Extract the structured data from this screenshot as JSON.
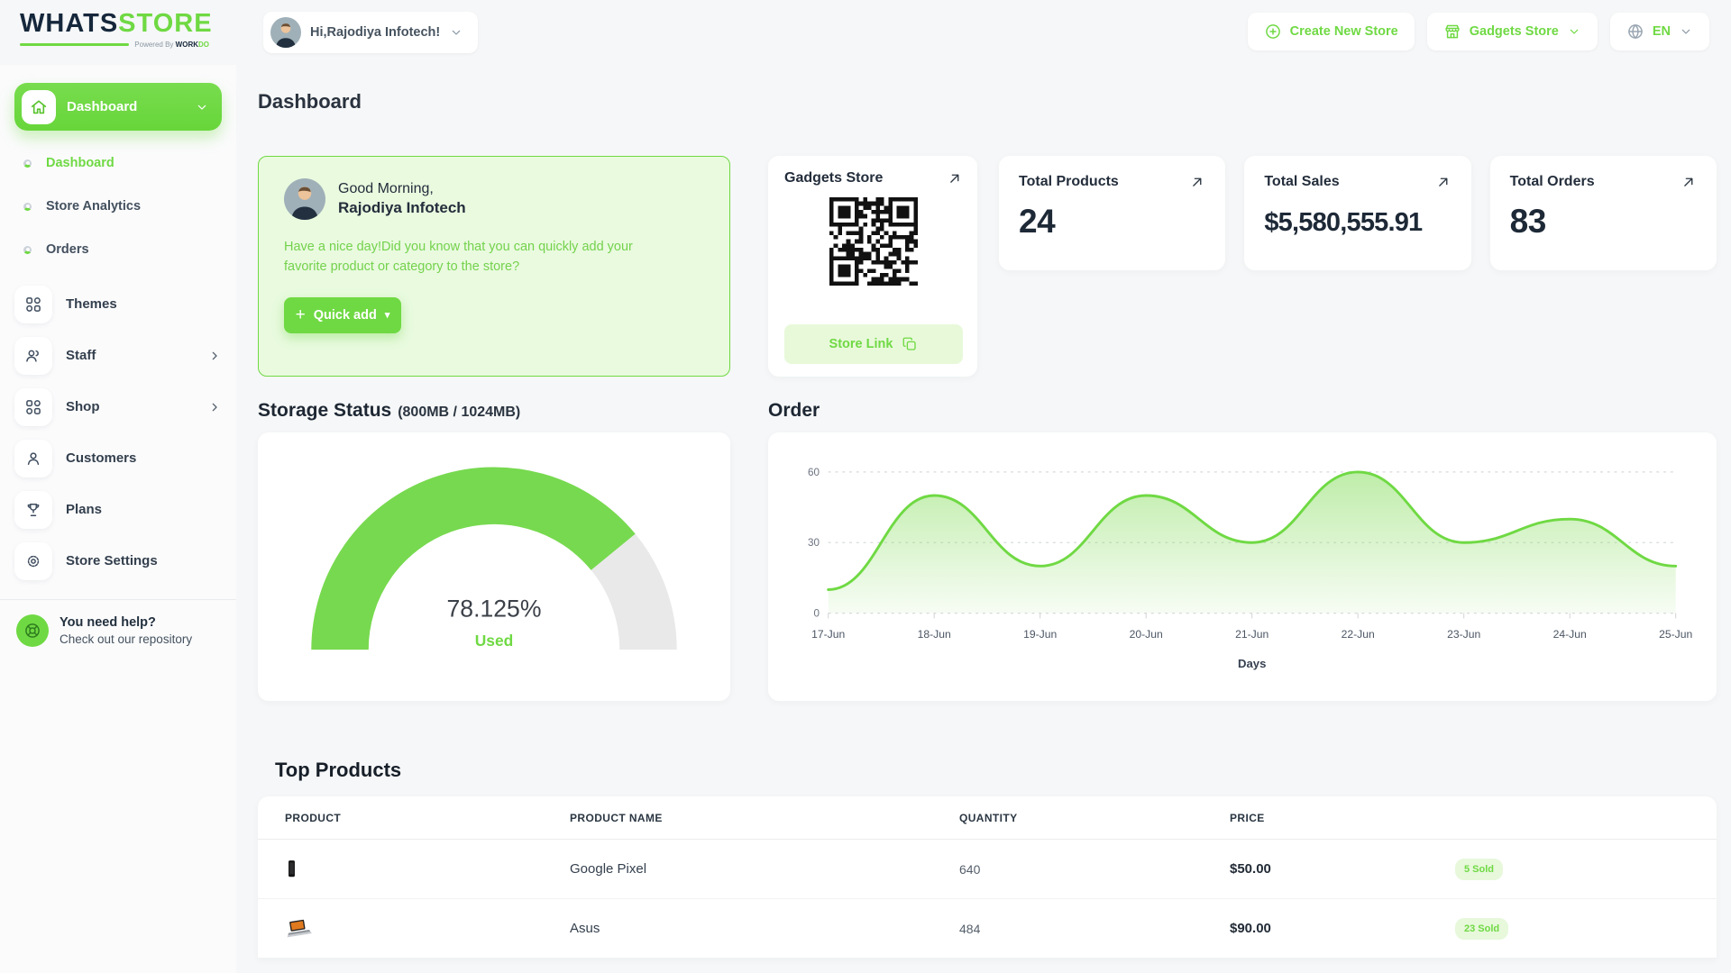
{
  "brand": {
    "primary": "WHATS",
    "secondary": "STORE",
    "powered_prefix": "Powered By",
    "powered_name": "WORKDO"
  },
  "header": {
    "user_pill_label": "Hi,Rajodiya Infotech!",
    "create_new_store": "Create New Store",
    "store_selector": "Gadgets Store",
    "language": "EN"
  },
  "sidebar": {
    "group_active_label": "Dashboard",
    "sub_items": [
      {
        "label": "Dashboard",
        "active": true
      },
      {
        "label": "Store Analytics",
        "active": false
      },
      {
        "label": "Orders",
        "active": false
      }
    ],
    "items": [
      {
        "label": "Themes",
        "icon": "themes-grid-icon",
        "has_chevron": false
      },
      {
        "label": "Staff",
        "icon": "staff-users-icon",
        "has_chevron": true
      },
      {
        "label": "Shop",
        "icon": "shop-grid-icon",
        "has_chevron": true
      },
      {
        "label": "Customers",
        "icon": "customer-user-icon",
        "has_chevron": false
      },
      {
        "label": "Plans",
        "icon": "plans-trophy-icon",
        "has_chevron": false
      },
      {
        "label": "Store Settings",
        "icon": "settings-gear-icon",
        "has_chevron": false
      }
    ],
    "help": {
      "title": "You need help?",
      "subtitle": "Check out our repository",
      "icon": "lifebuoy-icon"
    }
  },
  "page": {
    "title": "Dashboard"
  },
  "greeting_card": {
    "salutation": "Good Morning,",
    "user_name": "Rajodiya Infotech",
    "message": "Have a nice day!Did you know that you can quickly add your favorite product or category to the store?",
    "quick_add_label": "Quick add"
  },
  "store_card": {
    "title": "Gadgets Store",
    "store_link_label": "Store Link"
  },
  "stat_cards": [
    {
      "label": "Total Products",
      "value": "24"
    },
    {
      "label": "Total Sales",
      "value": "$5,580,555.91"
    },
    {
      "label": "Total Orders",
      "value": "83"
    }
  ],
  "storage_section": {
    "title": "Storage Status",
    "subtitle": "(800MB / 1024MB)"
  },
  "top_products": {
    "title": "Top Products",
    "columns": [
      "PRODUCT",
      "PRODUCT NAME",
      "QUANTITY",
      "PRICE"
    ],
    "rows": [
      {
        "image": "phone-thumbnail",
        "name": "Google Pixel",
        "quantity": "640",
        "price": "$50.00",
        "sold_badge": "5 Sold"
      },
      {
        "image": "laptop-thumbnail",
        "name": "Asus",
        "quantity": "484",
        "price": "$90.00",
        "sold_badge": "23 Sold"
      }
    ]
  },
  "chart_data": [
    {
      "type": "gauge",
      "title": "Storage Status",
      "subtitle": "(800MB / 1024MB)",
      "used_mb": 800,
      "total_mb": 1024,
      "percent": 78.125,
      "value_label": "78.125%",
      "center_sub_label": "Used",
      "color": "#77d94f",
      "track_color": "#e9e9e9"
    },
    {
      "type": "area",
      "title": "Order",
      "x": [
        "17-Jun",
        "18-Jun",
        "19-Jun",
        "20-Jun",
        "21-Jun",
        "22-Jun",
        "23-Jun",
        "24-Jun",
        "25-Jun"
      ],
      "values": [
        10,
        50,
        20,
        50,
        30,
        60,
        30,
        40,
        20
      ],
      "xlabel": "Days",
      "ylim": [
        0,
        60
      ],
      "yticks": [
        0,
        30,
        60
      ],
      "grid": "horizontal-dashed",
      "legend": "none",
      "line_color": "#6fd943",
      "fill": "vertical green gradient"
    }
  ],
  "colors": {
    "accent": "#6fd943",
    "accent_soft": "#e8f9da",
    "dark": "#232d3b",
    "page_bg": "#f6f7f8"
  }
}
